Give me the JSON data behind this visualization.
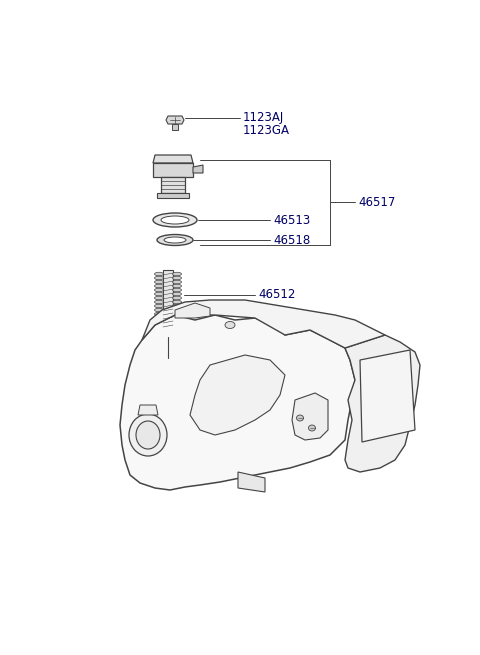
{
  "bg_color": "#ffffff",
  "line_color": "#444444",
  "label_color": "#000000",
  "parts_label_color": "#000066",
  "fig_width": 4.8,
  "fig_height": 6.55,
  "dpi": 100
}
